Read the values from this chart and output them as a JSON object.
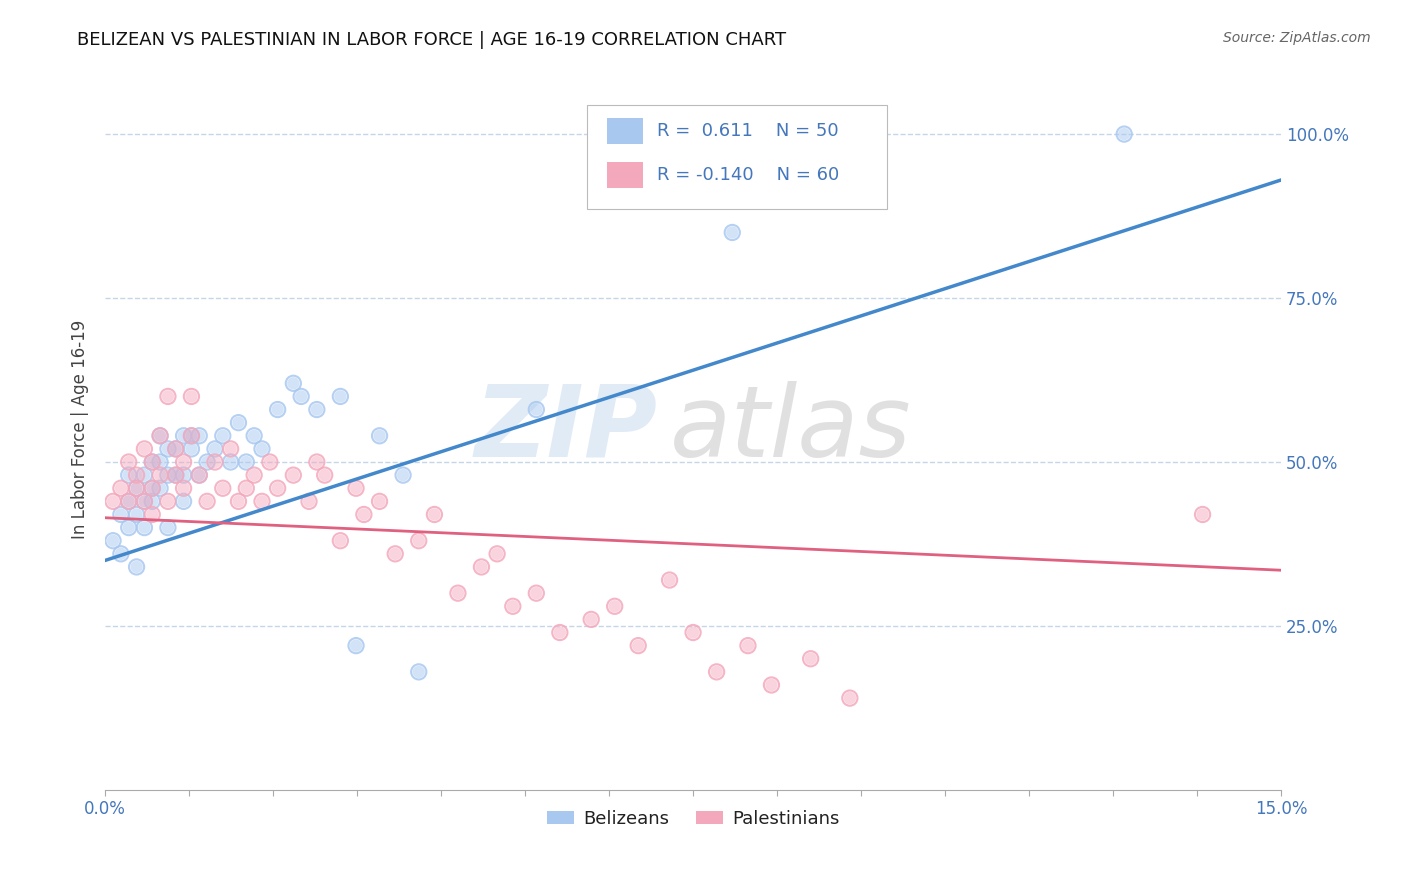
{
  "title": "BELIZEAN VS PALESTINIAN IN LABOR FORCE | AGE 16-19 CORRELATION CHART",
  "source": "Source: ZipAtlas.com",
  "ylabel": "In Labor Force | Age 16-19",
  "y_tick_labels": [
    "25.0%",
    "50.0%",
    "75.0%",
    "100.0%"
  ],
  "y_tick_positions": [
    0.25,
    0.5,
    0.75,
    1.0
  ],
  "xlim": [
    0.0,
    0.15
  ],
  "ylim": [
    0.0,
    1.1
  ],
  "legend_blue_r": "0.611",
  "legend_blue_n": "50",
  "legend_pink_r": "-0.140",
  "legend_pink_n": "60",
  "blue_color": "#A8C8F0",
  "pink_color": "#F4A8BC",
  "blue_line_color": "#4488CC",
  "pink_line_color": "#E06080",
  "watermark_zip": "ZIP",
  "watermark_atlas": "atlas",
  "blue_line_x0": 0.0,
  "blue_line_y0": 0.35,
  "blue_line_x1": 0.15,
  "blue_line_y1": 0.93,
  "pink_line_x0": 0.0,
  "pink_line_y0": 0.415,
  "pink_line_x1": 0.15,
  "pink_line_y1": 0.335,
  "blue_scatter_x": [
    0.001,
    0.002,
    0.002,
    0.003,
    0.003,
    0.003,
    0.004,
    0.004,
    0.004,
    0.005,
    0.005,
    0.005,
    0.006,
    0.006,
    0.006,
    0.007,
    0.007,
    0.007,
    0.008,
    0.008,
    0.008,
    0.009,
    0.009,
    0.01,
    0.01,
    0.01,
    0.011,
    0.011,
    0.012,
    0.012,
    0.013,
    0.014,
    0.015,
    0.016,
    0.017,
    0.018,
    0.019,
    0.02,
    0.022,
    0.024,
    0.025,
    0.027,
    0.03,
    0.032,
    0.035,
    0.038,
    0.04,
    0.055,
    0.08,
    0.13
  ],
  "blue_scatter_y": [
    0.38,
    0.42,
    0.36,
    0.44,
    0.4,
    0.48,
    0.46,
    0.42,
    0.34,
    0.44,
    0.48,
    0.4,
    0.5,
    0.46,
    0.44,
    0.54,
    0.5,
    0.46,
    0.52,
    0.48,
    0.4,
    0.52,
    0.48,
    0.54,
    0.48,
    0.44,
    0.54,
    0.52,
    0.54,
    0.48,
    0.5,
    0.52,
    0.54,
    0.5,
    0.56,
    0.5,
    0.54,
    0.52,
    0.58,
    0.62,
    0.6,
    0.58,
    0.6,
    0.22,
    0.54,
    0.48,
    0.18,
    0.58,
    0.85,
    1.0
  ],
  "pink_scatter_x": [
    0.001,
    0.002,
    0.003,
    0.003,
    0.004,
    0.004,
    0.005,
    0.005,
    0.006,
    0.006,
    0.006,
    0.007,
    0.007,
    0.008,
    0.008,
    0.009,
    0.009,
    0.01,
    0.01,
    0.011,
    0.011,
    0.012,
    0.013,
    0.014,
    0.015,
    0.016,
    0.017,
    0.018,
    0.019,
    0.02,
    0.021,
    0.022,
    0.024,
    0.026,
    0.027,
    0.028,
    0.03,
    0.032,
    0.033,
    0.035,
    0.037,
    0.04,
    0.042,
    0.045,
    0.048,
    0.05,
    0.052,
    0.055,
    0.058,
    0.062,
    0.065,
    0.068,
    0.072,
    0.075,
    0.078,
    0.082,
    0.085,
    0.09,
    0.095,
    0.14
  ],
  "pink_scatter_y": [
    0.44,
    0.46,
    0.5,
    0.44,
    0.48,
    0.46,
    0.44,
    0.52,
    0.46,
    0.5,
    0.42,
    0.54,
    0.48,
    0.6,
    0.44,
    0.48,
    0.52,
    0.46,
    0.5,
    0.54,
    0.6,
    0.48,
    0.44,
    0.5,
    0.46,
    0.52,
    0.44,
    0.46,
    0.48,
    0.44,
    0.5,
    0.46,
    0.48,
    0.44,
    0.5,
    0.48,
    0.38,
    0.46,
    0.42,
    0.44,
    0.36,
    0.38,
    0.42,
    0.3,
    0.34,
    0.36,
    0.28,
    0.3,
    0.24,
    0.26,
    0.28,
    0.22,
    0.32,
    0.24,
    0.18,
    0.22,
    0.16,
    0.2,
    0.14,
    0.42
  ]
}
